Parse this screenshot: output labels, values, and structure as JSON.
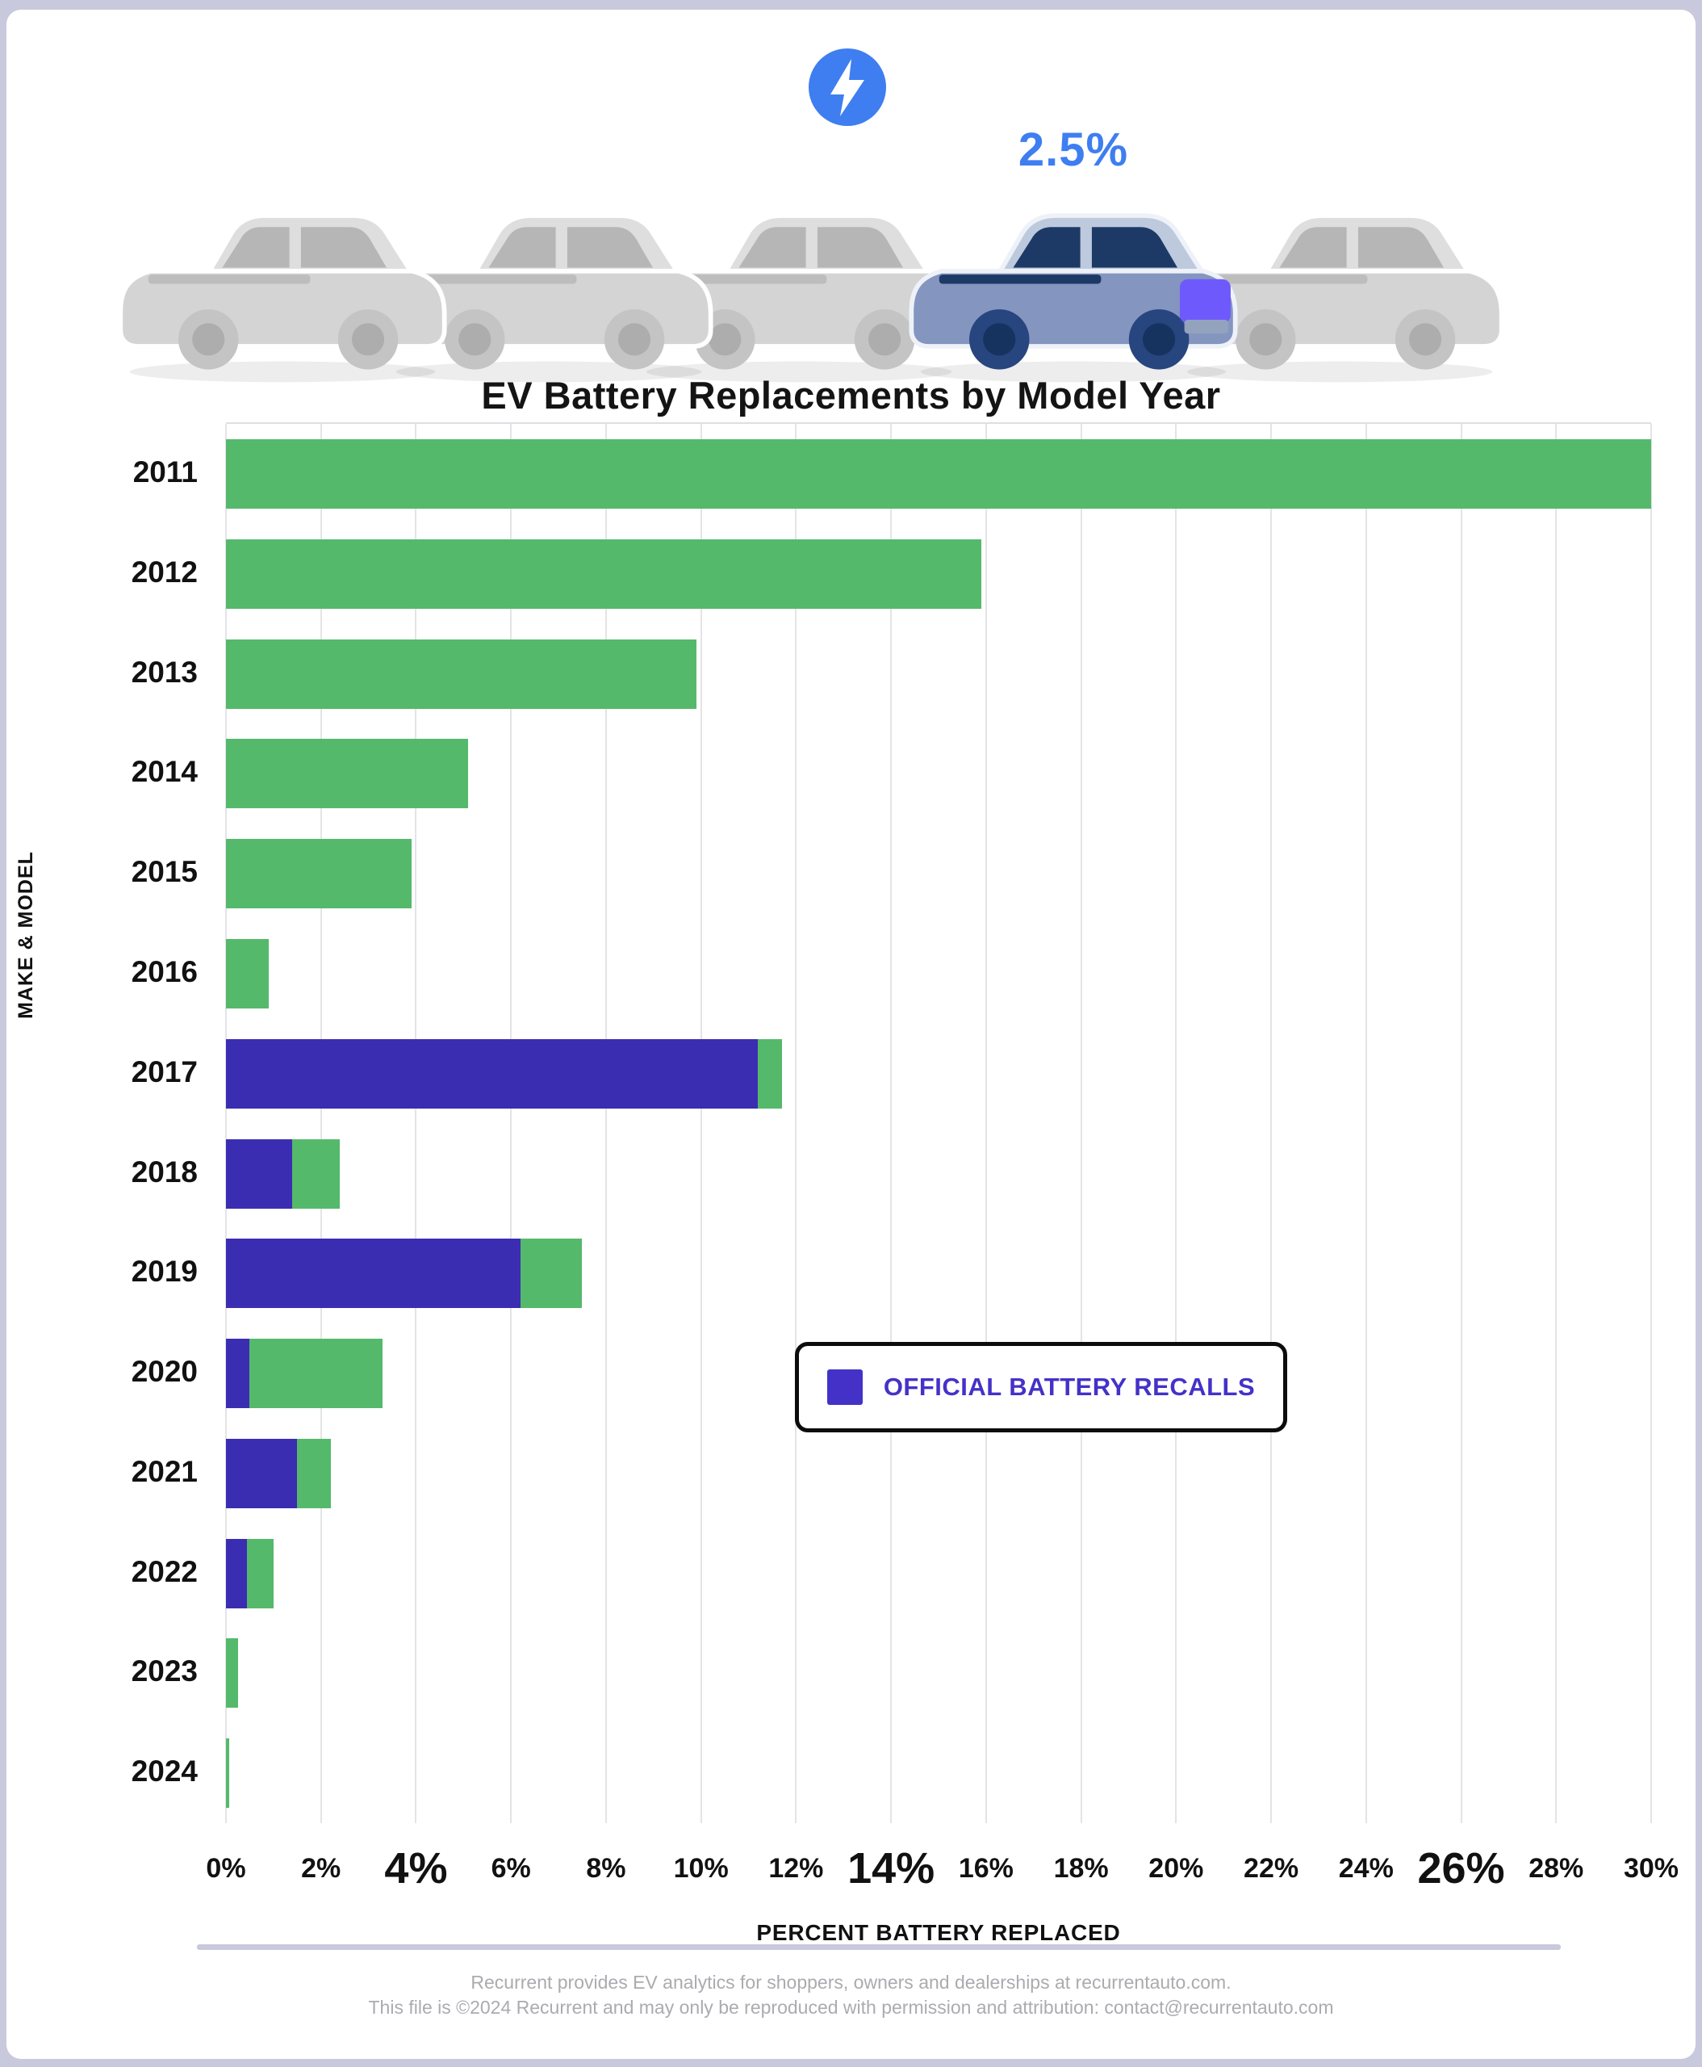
{
  "page": {
    "stat_value": "2.5%",
    "footer_line1": "Recurrent provides EV analytics for shoppers, owners and dealerships at recurrentauto.com.",
    "footer_line2": "This file is ©2024 Recurrent and may only be reproduced with permission and attribution: contact@recurrentauto.com"
  },
  "icons": {
    "lightning": "lightning-bolt-in-blue-circle",
    "cars": "row-of-five-cars-fourth-highlighted"
  },
  "colors": {
    "accent_blue": "#3E7EF0",
    "bar_green": "#55B96B",
    "bar_purple": "#3B2DB2",
    "legend_purple": "#4432C8",
    "frame_lavender": "#C9C9DD",
    "gridline": "#E4E4E8",
    "footer_gray": "#ABABB0",
    "car_blue_roof": "#BDC9DD",
    "car_blue_body": "#8496BF",
    "car_navy": "#1D3A66",
    "car_wheel_navy": "#27457E",
    "car_purple": "#6E5AFC"
  },
  "cars": {
    "count": 5,
    "highlighted_position": 4,
    "stat_label": "2.5%"
  },
  "chart_data": {
    "type": "bar",
    "orientation": "horizontal",
    "stacked": true,
    "title": "EV Battery Replacements by Model Year",
    "xlabel": "PERCENT BATTERY REPLACED",
    "ylabel": "MAKE & MODEL",
    "xlim": [
      0,
      30
    ],
    "grid": true,
    "x_ticks": [
      "0%",
      "2%",
      "4%",
      "6%",
      "8%",
      "10%",
      "12%",
      "14%",
      "16%",
      "18%",
      "20%",
      "22%",
      "24%",
      "26%",
      "28%",
      "30%"
    ],
    "emphasized_ticks": [
      "4%",
      "14%",
      "26%"
    ],
    "categories": [
      "2011",
      "2012",
      "2013",
      "2014",
      "2015",
      "2016",
      "2017",
      "2018",
      "2019",
      "2020",
      "2021",
      "2022",
      "2023",
      "2024"
    ],
    "recall_values": [
      0,
      0,
      0,
      0,
      0,
      0,
      11.2,
      1.4,
      6.2,
      0.5,
      1.5,
      0.45,
      0,
      0
    ],
    "total_values": [
      30,
      15.9,
      9.9,
      5.1,
      3.9,
      0.9,
      11.7,
      2.4,
      7.5,
      3.3,
      2.2,
      1.0,
      0.25,
      0.06
    ],
    "legend": {
      "label": "OFFICIAL BATTERY RECALLS",
      "position": "middle-right"
    }
  }
}
